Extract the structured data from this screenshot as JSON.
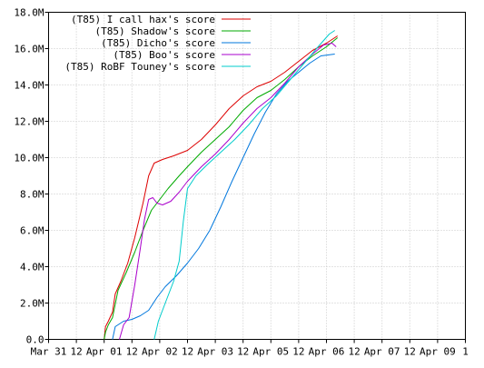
{
  "chart_data": {
    "type": "line",
    "title": "",
    "xlabel": "",
    "ylabel": "",
    "ylim": [
      0,
      18000000
    ],
    "y_ticks": [
      {
        "value": 0,
        "label": "0.0"
      },
      {
        "value": 2000000,
        "label": "2.0M"
      },
      {
        "value": 4000000,
        "label": "4.0M"
      },
      {
        "value": 6000000,
        "label": "6.0M"
      },
      {
        "value": 8000000,
        "label": "8.0M"
      },
      {
        "value": 10000000,
        "label": "10.0M"
      },
      {
        "value": 12000000,
        "label": "12.0M"
      },
      {
        "value": 14000000,
        "label": "14.0M"
      },
      {
        "value": 16000000,
        "label": "16.0M"
      },
      {
        "value": 18000000,
        "label": "18.0M"
      }
    ],
    "xlim": [
      "Mar 31",
      "Apr 13"
    ],
    "x_ticks": [
      "Mar 31",
      "12",
      "Apr 01",
      "12",
      "Apr 02",
      "12",
      "Apr 03",
      "12",
      "Apr 05",
      "12",
      "Apr 06",
      "12",
      "Apr 07",
      "12",
      "Apr 09",
      "1"
    ],
    "grid": true,
    "legend_position": "top-left",
    "series": [
      {
        "name": "(T85) I call hax's score",
        "color": "#dd0000",
        "points": [
          [
            2.0,
            0
          ],
          [
            2.05,
            700000
          ],
          [
            2.15,
            1000000
          ],
          [
            2.3,
            1500000
          ],
          [
            2.4,
            2500000
          ],
          [
            2.6,
            3200000
          ],
          [
            2.85,
            4200000
          ],
          [
            3.1,
            5600000
          ],
          [
            3.4,
            7500000
          ],
          [
            3.6,
            9000000
          ],
          [
            3.8,
            9700000
          ],
          [
            4.1,
            9900000
          ],
          [
            4.5,
            10100000
          ],
          [
            5.0,
            10400000
          ],
          [
            5.5,
            11000000
          ],
          [
            6.0,
            11800000
          ],
          [
            6.5,
            12700000
          ],
          [
            7.0,
            13400000
          ],
          [
            7.5,
            13900000
          ],
          [
            8.0,
            14200000
          ],
          [
            8.5,
            14700000
          ],
          [
            9.0,
            15300000
          ],
          [
            9.5,
            15900000
          ],
          [
            10.0,
            16300000
          ],
          [
            10.4,
            16700000
          ]
        ]
      },
      {
        "name": "(T85) Shadow's score",
        "color": "#00aa00",
        "points": [
          [
            2.0,
            0
          ],
          [
            2.05,
            400000
          ],
          [
            2.15,
            800000
          ],
          [
            2.3,
            1200000
          ],
          [
            2.5,
            2700000
          ],
          [
            2.8,
            3700000
          ],
          [
            3.1,
            4800000
          ],
          [
            3.4,
            6000000
          ],
          [
            3.7,
            7100000
          ],
          [
            4.0,
            7700000
          ],
          [
            4.3,
            8300000
          ],
          [
            4.7,
            9000000
          ],
          [
            5.0,
            9500000
          ],
          [
            5.5,
            10300000
          ],
          [
            6.0,
            11000000
          ],
          [
            6.5,
            11700000
          ],
          [
            7.0,
            12600000
          ],
          [
            7.5,
            13300000
          ],
          [
            8.0,
            13700000
          ],
          [
            8.5,
            14300000
          ],
          [
            9.0,
            15000000
          ],
          [
            9.5,
            15600000
          ],
          [
            10.0,
            16100000
          ],
          [
            10.4,
            16600000
          ]
        ]
      },
      {
        "name": "(T85) Dicho's score",
        "color": "#0077dd",
        "points": [
          [
            2.3,
            0
          ],
          [
            2.4,
            700000
          ],
          [
            2.7,
            1000000
          ],
          [
            3.0,
            1100000
          ],
          [
            3.3,
            1300000
          ],
          [
            3.6,
            1600000
          ],
          [
            3.9,
            2300000
          ],
          [
            4.2,
            2900000
          ],
          [
            4.6,
            3500000
          ],
          [
            5.0,
            4200000
          ],
          [
            5.4,
            5000000
          ],
          [
            5.8,
            6000000
          ],
          [
            6.2,
            7300000
          ],
          [
            6.6,
            8700000
          ],
          [
            7.0,
            10000000
          ],
          [
            7.4,
            11300000
          ],
          [
            7.8,
            12500000
          ],
          [
            8.2,
            13500000
          ],
          [
            8.6,
            14200000
          ],
          [
            9.0,
            14700000
          ],
          [
            9.4,
            15200000
          ],
          [
            9.8,
            15600000
          ],
          [
            10.3,
            15700000
          ]
        ]
      },
      {
        "name": "(T85) Boo's score",
        "color": "#aa00cc",
        "points": [
          [
            2.55,
            0
          ],
          [
            2.7,
            800000
          ],
          [
            2.9,
            1200000
          ],
          [
            3.1,
            3000000
          ],
          [
            3.3,
            5000000
          ],
          [
            3.45,
            6600000
          ],
          [
            3.6,
            7700000
          ],
          [
            3.75,
            7800000
          ],
          [
            3.9,
            7500000
          ],
          [
            4.1,
            7400000
          ],
          [
            4.4,
            7600000
          ],
          [
            4.7,
            8100000
          ],
          [
            5.0,
            8700000
          ],
          [
            5.5,
            9500000
          ],
          [
            6.0,
            10200000
          ],
          [
            6.5,
            11000000
          ],
          [
            7.0,
            11900000
          ],
          [
            7.5,
            12700000
          ],
          [
            8.0,
            13300000
          ],
          [
            8.5,
            14100000
          ],
          [
            9.0,
            15000000
          ],
          [
            9.5,
            15700000
          ],
          [
            9.9,
            16200000
          ],
          [
            10.2,
            16300000
          ],
          [
            10.35,
            16100000
          ]
        ]
      },
      {
        "name": "(T85) RoBF Touney's score",
        "color": "#00cccc",
        "points": [
          [
            3.8,
            0
          ],
          [
            3.95,
            1000000
          ],
          [
            4.2,
            2000000
          ],
          [
            4.5,
            3200000
          ],
          [
            4.7,
            4300000
          ],
          [
            4.85,
            6500000
          ],
          [
            5.0,
            8300000
          ],
          [
            5.3,
            9000000
          ],
          [
            5.7,
            9600000
          ],
          [
            6.2,
            10300000
          ],
          [
            6.7,
            11000000
          ],
          [
            7.2,
            11800000
          ],
          [
            7.7,
            12700000
          ],
          [
            8.2,
            13400000
          ],
          [
            8.7,
            14300000
          ],
          [
            9.2,
            15200000
          ],
          [
            9.7,
            16100000
          ],
          [
            10.1,
            16800000
          ],
          [
            10.3,
            17000000
          ]
        ]
      }
    ]
  }
}
